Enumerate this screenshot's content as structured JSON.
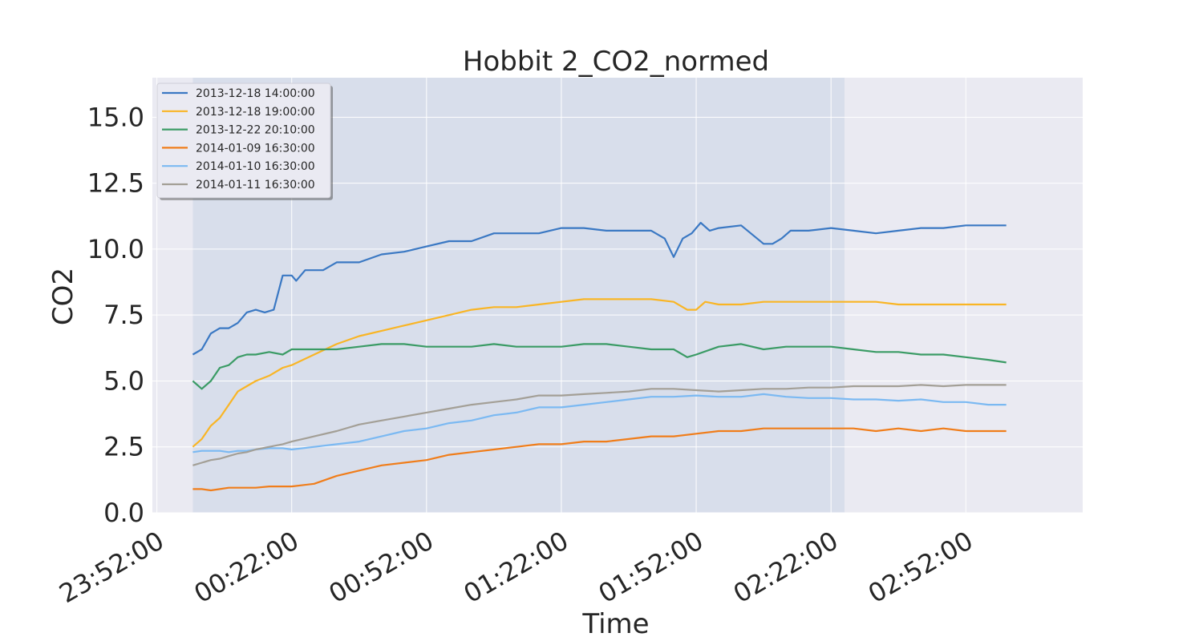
{
  "chart_data": {
    "type": "line",
    "title": "Hobbit 2_CO2_normed",
    "xlabel": "Time",
    "ylabel": "CO2",
    "x_ticks": [
      "23:52:00",
      "00:22:00",
      "00:52:00",
      "01:22:00",
      "01:52:00",
      "02:22:00",
      "02:52:00"
    ],
    "x_tick_minutes": [
      0,
      30,
      60,
      90,
      120,
      150,
      180
    ],
    "xlim_minutes": [
      -1,
      206
    ],
    "ylim": [
      0,
      16.5
    ],
    "y_ticks": [
      0,
      2.5,
      5,
      7.5,
      10,
      12.5,
      15
    ],
    "y_tick_labels": [
      "0.0",
      "2.5",
      "5.0",
      "7.5",
      "10.0",
      "12.5",
      "15.0"
    ],
    "shaded_span_minutes": [
      8,
      153
    ],
    "grid": true,
    "legend_position": "top-left",
    "series": [
      {
        "name": "2013-12-18 14:00:00",
        "color": "#3a78c3",
        "x": [
          8,
          10,
          12,
          14,
          16,
          18,
          20,
          22,
          24,
          26,
          28,
          30,
          31,
          33,
          35,
          37,
          40,
          45,
          50,
          55,
          60,
          65,
          70,
          75,
          80,
          85,
          90,
          95,
          100,
          105,
          110,
          113,
          115,
          117,
          119,
          121,
          123,
          125,
          130,
          135,
          137,
          139,
          141,
          145,
          150,
          155,
          160,
          165,
          170,
          175,
          180,
          185,
          189
        ],
        "y": [
          6.0,
          6.2,
          6.8,
          7.0,
          7.0,
          7.2,
          7.6,
          7.7,
          7.6,
          7.7,
          9.0,
          9.0,
          8.8,
          9.2,
          9.2,
          9.2,
          9.5,
          9.5,
          9.8,
          9.9,
          10.1,
          10.3,
          10.3,
          10.6,
          10.6,
          10.6,
          10.8,
          10.8,
          10.7,
          10.7,
          10.7,
          10.4,
          9.7,
          10.4,
          10.6,
          11.0,
          10.7,
          10.8,
          10.9,
          10.2,
          10.2,
          10.4,
          10.7,
          10.7,
          10.8,
          10.7,
          10.6,
          10.7,
          10.8,
          10.8,
          10.9,
          10.9,
          10.9
        ]
      },
      {
        "name": "2013-12-18 19:00:00",
        "color": "#f9b525",
        "x": [
          8,
          10,
          12,
          14,
          16,
          18,
          20,
          22,
          25,
          28,
          30,
          35,
          40,
          45,
          50,
          55,
          60,
          65,
          70,
          75,
          80,
          85,
          90,
          95,
          100,
          105,
          110,
          115,
          118,
          120,
          122,
          125,
          130,
          135,
          140,
          145,
          150,
          155,
          160,
          165,
          170,
          175,
          180,
          185,
          189
        ],
        "y": [
          2.5,
          2.8,
          3.3,
          3.6,
          4.1,
          4.6,
          4.8,
          5.0,
          5.2,
          5.5,
          5.6,
          6.0,
          6.4,
          6.7,
          6.9,
          7.1,
          7.3,
          7.5,
          7.7,
          7.8,
          7.8,
          7.9,
          8.0,
          8.1,
          8.1,
          8.1,
          8.1,
          8.0,
          7.7,
          7.7,
          8.0,
          7.9,
          7.9,
          8.0,
          8.0,
          8.0,
          8.0,
          8.0,
          8.0,
          7.9,
          7.9,
          7.9,
          7.9,
          7.9,
          7.9
        ]
      },
      {
        "name": "2013-12-22 20:10:00",
        "color": "#3a9b65",
        "x": [
          8,
          10,
          12,
          14,
          16,
          18,
          20,
          22,
          25,
          28,
          30,
          35,
          40,
          45,
          50,
          55,
          60,
          65,
          70,
          75,
          80,
          85,
          90,
          95,
          100,
          105,
          110,
          115,
          118,
          120,
          125,
          130,
          135,
          140,
          145,
          150,
          155,
          160,
          165,
          170,
          175,
          180,
          185,
          189
        ],
        "y": [
          5.0,
          4.7,
          5.0,
          5.5,
          5.6,
          5.9,
          6.0,
          6.0,
          6.1,
          6.0,
          6.2,
          6.2,
          6.2,
          6.3,
          6.4,
          6.4,
          6.3,
          6.3,
          6.3,
          6.4,
          6.3,
          6.3,
          6.3,
          6.4,
          6.4,
          6.3,
          6.2,
          6.2,
          5.9,
          6.0,
          6.3,
          6.4,
          6.2,
          6.3,
          6.3,
          6.3,
          6.2,
          6.1,
          6.1,
          6.0,
          6.0,
          5.9,
          5.8,
          5.7
        ]
      },
      {
        "name": "2014-01-09 16:30:00",
        "color": "#f07d1a",
        "x": [
          8,
          10,
          12,
          14,
          16,
          18,
          20,
          22,
          25,
          28,
          30,
          35,
          40,
          45,
          50,
          55,
          60,
          65,
          70,
          75,
          80,
          85,
          90,
          95,
          100,
          105,
          110,
          115,
          120,
          125,
          130,
          135,
          140,
          145,
          150,
          155,
          160,
          165,
          170,
          175,
          180,
          185,
          189
        ],
        "y": [
          0.9,
          0.9,
          0.85,
          0.9,
          0.95,
          0.95,
          0.95,
          0.95,
          1.0,
          1.0,
          1.0,
          1.1,
          1.4,
          1.6,
          1.8,
          1.9,
          2.0,
          2.2,
          2.3,
          2.4,
          2.5,
          2.6,
          2.6,
          2.7,
          2.7,
          2.8,
          2.9,
          2.9,
          3.0,
          3.1,
          3.1,
          3.2,
          3.2,
          3.2,
          3.2,
          3.2,
          3.1,
          3.2,
          3.1,
          3.2,
          3.1,
          3.1,
          3.1
        ]
      },
      {
        "name": "2014-01-10 16:30:00",
        "color": "#7bb9f2",
        "x": [
          8,
          10,
          12,
          14,
          16,
          18,
          20,
          22,
          25,
          28,
          30,
          35,
          40,
          45,
          50,
          55,
          60,
          65,
          70,
          75,
          80,
          85,
          90,
          95,
          100,
          105,
          110,
          115,
          120,
          125,
          130,
          135,
          140,
          145,
          150,
          155,
          160,
          165,
          170,
          175,
          180,
          185,
          189
        ],
        "y": [
          2.3,
          2.35,
          2.35,
          2.35,
          2.3,
          2.35,
          2.35,
          2.4,
          2.45,
          2.45,
          2.4,
          2.5,
          2.6,
          2.7,
          2.9,
          3.1,
          3.2,
          3.4,
          3.5,
          3.7,
          3.8,
          4.0,
          4.0,
          4.1,
          4.2,
          4.3,
          4.4,
          4.4,
          4.45,
          4.4,
          4.4,
          4.5,
          4.4,
          4.35,
          4.35,
          4.3,
          4.3,
          4.25,
          4.3,
          4.2,
          4.2,
          4.1,
          4.1
        ]
      },
      {
        "name": "2014-01-11 16:30:00",
        "color": "#a39f96",
        "x": [
          8,
          10,
          12,
          14,
          16,
          18,
          20,
          22,
          25,
          28,
          30,
          35,
          40,
          45,
          50,
          55,
          60,
          65,
          70,
          75,
          80,
          85,
          90,
          95,
          100,
          105,
          110,
          115,
          120,
          125,
          130,
          135,
          140,
          145,
          150,
          155,
          160,
          165,
          170,
          175,
          180,
          185,
          189
        ],
        "y": [
          1.8,
          1.9,
          2.0,
          2.05,
          2.15,
          2.25,
          2.3,
          2.4,
          2.5,
          2.6,
          2.7,
          2.9,
          3.1,
          3.35,
          3.5,
          3.65,
          3.8,
          3.95,
          4.1,
          4.2,
          4.3,
          4.45,
          4.45,
          4.5,
          4.55,
          4.6,
          4.7,
          4.7,
          4.65,
          4.6,
          4.65,
          4.7,
          4.7,
          4.75,
          4.75,
          4.8,
          4.8,
          4.8,
          4.85,
          4.8,
          4.85,
          4.85,
          4.85
        ]
      }
    ]
  }
}
